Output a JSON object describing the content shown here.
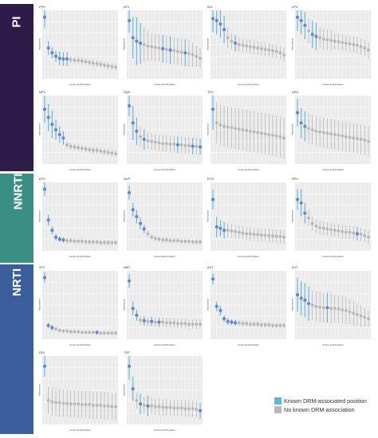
{
  "colors": {
    "known": "#5fb6d6",
    "known_point": "#6a86c9",
    "none": "#b8b8b8",
    "panel_bg": "#ebebeb",
    "grid": "#ffffff",
    "band_pi": "#2d1b4a",
    "band_nnrti": "#3a8f84",
    "band_nrti": "#3a5f9c"
  },
  "bands": [
    {
      "key": "pi",
      "label": "PI"
    },
    {
      "key": "nnrti",
      "label": "NNRTI"
    },
    {
      "key": "nrti",
      "label": "NRTI"
    }
  ],
  "legend": {
    "known_label": "Known DRM-associated position",
    "none_label": "No known DRM-association"
  },
  "chart_data": [
    {
      "type": "scatter",
      "title": "FPV",
      "xlabel": "Amino Acid Position",
      "ylabel": "Importance",
      "values": [
        0.9,
        0.45,
        0.38,
        0.33,
        0.3,
        0.29,
        0.29,
        0.28,
        0.27,
        0.27,
        0.26,
        0.25,
        0.24,
        0.23,
        0.22,
        0.21,
        0.2,
        0.19,
        0.18,
        0.17
      ],
      "known": [
        1,
        1,
        1,
        1,
        1,
        1,
        1,
        0,
        0,
        0,
        0,
        0,
        0,
        0,
        0,
        0,
        0,
        0,
        0,
        0
      ],
      "err": [
        0.15,
        0.1,
        0.08,
        0.08,
        0.1,
        0.1,
        0.1,
        0.05,
        0.05,
        0.05,
        0.05,
        0.05,
        0.05,
        0.05,
        0.05,
        0.05,
        0.05,
        0.05,
        0.05,
        0.05
      ]
    },
    {
      "type": "scatter",
      "title": "ATV",
      "xlabel": "Amino Acid Position",
      "ylabel": "Importance",
      "values": [
        0.85,
        0.6,
        0.55,
        0.52,
        0.5,
        0.48,
        0.47,
        0.46,
        0.45,
        0.44,
        0.43,
        0.42,
        0.41,
        0.4,
        0.39,
        0.38,
        0.37,
        0.35,
        0.33,
        0.3
      ],
      "known": [
        1,
        1,
        1,
        1,
        0,
        0,
        0,
        0,
        0,
        1,
        0,
        1,
        0,
        0,
        0,
        1,
        0,
        0,
        0,
        0
      ],
      "err": [
        0.18,
        0.3,
        0.35,
        0.3,
        0.25,
        0.22,
        0.2,
        0.2,
        0.2,
        0.2,
        0.2,
        0.2,
        0.2,
        0.2,
        0.2,
        0.2,
        0.2,
        0.18,
        0.15,
        0.15
      ]
    },
    {
      "type": "scatter",
      "title": "IDV",
      "xlabel": "Amino Acid Position",
      "ylabel": "Importance",
      "values": [
        0.88,
        0.85,
        0.8,
        0.72,
        0.6,
        0.55,
        0.52,
        0.5,
        0.49,
        0.48,
        0.47,
        0.46,
        0.45,
        0.44,
        0.43,
        0.42,
        0.41,
        0.4,
        0.38,
        0.35
      ],
      "known": [
        1,
        1,
        1,
        1,
        0,
        0,
        1,
        0,
        0,
        0,
        0,
        0,
        0,
        0,
        0,
        0,
        0,
        0,
        0,
        0
      ],
      "err": [
        0.2,
        0.2,
        0.2,
        0.2,
        0.15,
        0.12,
        0.12,
        0.1,
        0.1,
        0.1,
        0.1,
        0.1,
        0.1,
        0.1,
        0.1,
        0.1,
        0.1,
        0.1,
        0.1,
        0.1
      ]
    },
    {
      "type": "scatter",
      "title": "LPV",
      "xlabel": "Amino Acid Position",
      "ylabel": "Importance",
      "values": [
        0.9,
        0.85,
        0.78,
        0.7,
        0.65,
        0.62,
        0.6,
        0.58,
        0.57,
        0.56,
        0.55,
        0.54,
        0.53,
        0.52,
        0.51,
        0.5,
        0.49,
        0.47,
        0.45,
        0.42
      ],
      "known": [
        1,
        1,
        1,
        0,
        1,
        1,
        0,
        0,
        0,
        0,
        0,
        0,
        0,
        0,
        0,
        0,
        0,
        0,
        0,
        0
      ],
      "err": [
        0.2,
        0.2,
        0.2,
        0.18,
        0.2,
        0.2,
        0.15,
        0.15,
        0.15,
        0.15,
        0.12,
        0.12,
        0.12,
        0.12,
        0.12,
        0.12,
        0.12,
        0.12,
        0.12,
        0.12
      ]
    },
    {
      "type": "scatter",
      "title": "NFV",
      "xlabel": "Amino Acid Position",
      "ylabel": "Importance",
      "values": [
        0.8,
        0.68,
        0.58,
        0.5,
        0.43,
        0.38,
        0.28,
        0.26,
        0.25,
        0.24,
        0.23,
        0.22,
        0.21,
        0.2,
        0.2,
        0.19,
        0.18,
        0.17,
        0.16,
        0.15
      ],
      "known": [
        1,
        1,
        1,
        1,
        1,
        1,
        0,
        0,
        0,
        0,
        0,
        0,
        0,
        0,
        0,
        0,
        0,
        0,
        0,
        0
      ],
      "err": [
        0.2,
        0.2,
        0.2,
        0.15,
        0.12,
        0.1,
        0.05,
        0.05,
        0.05,
        0.05,
        0.05,
        0.05,
        0.05,
        0.05,
        0.05,
        0.05,
        0.05,
        0.05,
        0.05,
        0.05
      ]
    },
    {
      "type": "scatter",
      "title": "SQV",
      "xlabel": "Amino Acid Position",
      "ylabel": "Importance",
      "values": [
        0.85,
        0.6,
        0.48,
        0.4,
        0.36,
        0.34,
        0.33,
        0.32,
        0.31,
        0.3,
        0.3,
        0.29,
        0.29,
        0.28,
        0.28,
        0.27,
        0.27,
        0.26,
        0.26,
        0.25
      ],
      "known": [
        1,
        1,
        1,
        0,
        1,
        0,
        0,
        0,
        0,
        0,
        0,
        0,
        0,
        1,
        0,
        0,
        0,
        1,
        0,
        1
      ],
      "err": [
        0.15,
        0.25,
        0.2,
        0.15,
        0.15,
        0.12,
        0.12,
        0.12,
        0.12,
        0.12,
        0.12,
        0.12,
        0.12,
        0.12,
        0.12,
        0.12,
        0.12,
        0.12,
        0.12,
        0.12
      ]
    },
    {
      "type": "scatter",
      "title": "TPV",
      "xlabel": "Amino Acid Position",
      "ylabel": "Importance",
      "values": [
        0.8,
        0.6,
        0.57,
        0.55,
        0.54,
        0.53,
        0.52,
        0.51,
        0.5,
        0.49,
        0.48,
        0.47,
        0.46,
        0.45,
        0.44,
        0.43,
        0.42,
        0.41,
        0.4,
        0.38
      ],
      "known": [
        1,
        0,
        0,
        0,
        0,
        0,
        0,
        0,
        0,
        0,
        0,
        0,
        0,
        0,
        0,
        0,
        0,
        0,
        0,
        0
      ],
      "err": [
        0.3,
        0.3,
        0.3,
        0.3,
        0.3,
        0.3,
        0.3,
        0.3,
        0.3,
        0.3,
        0.3,
        0.3,
        0.3,
        0.3,
        0.3,
        0.3,
        0.3,
        0.3,
        0.3,
        0.3
      ]
    },
    {
      "type": "scatter",
      "title": "DRV",
      "xlabel": "Amino Acid Position",
      "ylabel": "Importance",
      "values": [
        0.75,
        0.6,
        0.55,
        0.52,
        0.5,
        0.48,
        0.47,
        0.46,
        0.45,
        0.44,
        0.43,
        0.42,
        0.41,
        0.4,
        0.39,
        0.38,
        0.37,
        0.36,
        0.35,
        0.33
      ],
      "known": [
        1,
        1,
        1,
        0,
        0,
        0,
        0,
        0,
        0,
        0,
        0,
        0,
        0,
        0,
        0,
        0,
        0,
        0,
        0,
        0
      ],
      "err": [
        0.2,
        0.22,
        0.22,
        0.22,
        0.22,
        0.22,
        0.22,
        0.22,
        0.22,
        0.22,
        0.22,
        0.22,
        0.22,
        0.22,
        0.22,
        0.22,
        0.22,
        0.22,
        0.22,
        0.22
      ]
    },
    {
      "type": "scatter",
      "title": "EFV",
      "xlabel": "Amino Acid Position",
      "ylabel": "Importance",
      "values": [
        0.9,
        0.45,
        0.3,
        0.2,
        0.17,
        0.16,
        0.15,
        0.15,
        0.14,
        0.14,
        0.14,
        0.13,
        0.13,
        0.13,
        0.13,
        0.12,
        0.12,
        0.12,
        0.12,
        0.12
      ],
      "known": [
        1,
        1,
        1,
        1,
        1,
        1,
        0,
        0,
        0,
        0,
        0,
        0,
        0,
        0,
        0,
        0,
        0,
        0,
        0,
        0
      ],
      "err": [
        0.1,
        0.08,
        0.06,
        0.05,
        0.04,
        0.04,
        0.04,
        0.04,
        0.04,
        0.04,
        0.04,
        0.04,
        0.04,
        0.04,
        0.04,
        0.04,
        0.04,
        0.04,
        0.04,
        0.04
      ]
    },
    {
      "type": "scatter",
      "title": "NVP",
      "xlabel": "Amino Acid Position",
      "ylabel": "Importance",
      "values": [
        0.85,
        0.6,
        0.5,
        0.4,
        0.32,
        0.25,
        0.2,
        0.18,
        0.17,
        0.16,
        0.16,
        0.15,
        0.15,
        0.15,
        0.14,
        0.14,
        0.14,
        0.13,
        0.13,
        0.13
      ],
      "known": [
        1,
        1,
        1,
        1,
        1,
        0,
        0,
        0,
        0,
        0,
        0,
        0,
        0,
        0,
        0,
        0,
        0,
        0,
        0,
        0
      ],
      "err": [
        0.1,
        0.1,
        0.1,
        0.08,
        0.06,
        0.05,
        0.05,
        0.04,
        0.04,
        0.04,
        0.04,
        0.04,
        0.04,
        0.04,
        0.04,
        0.04,
        0.04,
        0.04,
        0.04,
        0.04
      ]
    },
    {
      "type": "scatter",
      "title": "ETR",
      "xlabel": "Amino Acid Position",
      "ylabel": "Importance",
      "values": [
        0.75,
        0.35,
        0.33,
        0.3,
        0.3,
        0.29,
        0.28,
        0.27,
        0.26,
        0.25,
        0.25,
        0.24,
        0.24,
        0.23,
        0.23,
        0.22,
        0.22,
        0.21,
        0.21,
        0.2
      ],
      "known": [
        1,
        1,
        1,
        1,
        0,
        0,
        0,
        0,
        0,
        0,
        0,
        0,
        0,
        0,
        0,
        0,
        0,
        0,
        0,
        0
      ],
      "err": [
        0.15,
        0.15,
        0.12,
        0.12,
        0.1,
        0.1,
        0.1,
        0.1,
        0.1,
        0.1,
        0.1,
        0.1,
        0.1,
        0.1,
        0.1,
        0.1,
        0.1,
        0.1,
        0.1,
        0.1
      ]
    },
    {
      "type": "scatter",
      "title": "RPV",
      "xlabel": "Amino Acid Position",
      "ylabel": "Importance",
      "values": [
        0.75,
        0.7,
        0.55,
        0.48,
        0.4,
        0.36,
        0.34,
        0.33,
        0.32,
        0.31,
        0.3,
        0.29,
        0.28,
        0.27,
        0.27,
        0.26,
        0.25,
        0.24,
        0.22,
        0.2
      ],
      "known": [
        1,
        1,
        1,
        0,
        0,
        0,
        0,
        0,
        0,
        0,
        0,
        0,
        0,
        0,
        0,
        0,
        1,
        0,
        0,
        0
      ],
      "err": [
        0.15,
        0.2,
        0.15,
        0.12,
        0.1,
        0.1,
        0.1,
        0.1,
        0.1,
        0.1,
        0.1,
        0.1,
        0.1,
        0.1,
        0.1,
        0.1,
        0.1,
        0.1,
        0.1,
        0.1
      ]
    },
    {
      "type": "scatter",
      "title": "3TC",
      "xlabel": "Amino Acid Position",
      "ylabel": "Importance",
      "values": [
        0.9,
        0.2,
        0.17,
        0.15,
        0.13,
        0.12,
        0.12,
        0.11,
        0.11,
        0.11,
        0.1,
        0.1,
        0.1,
        0.1,
        0.1,
        0.09,
        0.09,
        0.09,
        0.09,
        0.09
      ],
      "known": [
        1,
        1,
        1,
        0,
        0,
        0,
        0,
        0,
        0,
        0,
        0,
        0,
        0,
        0,
        1,
        0,
        0,
        0,
        0,
        0
      ],
      "err": [
        0.08,
        0.04,
        0.04,
        0.03,
        0.03,
        0.03,
        0.03,
        0.03,
        0.03,
        0.03,
        0.03,
        0.03,
        0.03,
        0.03,
        0.03,
        0.03,
        0.03,
        0.03,
        0.03,
        0.03
      ]
    },
    {
      "type": "scatter",
      "title": "ABC",
      "xlabel": "Amino Acid Position",
      "ylabel": "Importance",
      "values": [
        0.85,
        0.45,
        0.35,
        0.28,
        0.27,
        0.26,
        0.26,
        0.25,
        0.25,
        0.25,
        0.24,
        0.24,
        0.24,
        0.23,
        0.23,
        0.23,
        0.22,
        0.22,
        0.22,
        0.22
      ],
      "known": [
        1,
        1,
        1,
        0,
        1,
        0,
        1,
        0,
        1,
        0,
        0,
        0,
        0,
        0,
        0,
        0,
        0,
        0,
        0,
        0
      ],
      "err": [
        0.1,
        0.1,
        0.08,
        0.07,
        0.07,
        0.07,
        0.07,
        0.07,
        0.07,
        0.07,
        0.07,
        0.07,
        0.07,
        0.07,
        0.07,
        0.07,
        0.07,
        0.07,
        0.07,
        0.07
      ]
    },
    {
      "type": "scatter",
      "title": "AZT",
      "xlabel": "Amino Acid Position",
      "ylabel": "Importance",
      "values": [
        0.88,
        0.48,
        0.42,
        0.3,
        0.26,
        0.25,
        0.24,
        0.24,
        0.23,
        0.23,
        0.22,
        0.22,
        0.22,
        0.21,
        0.21,
        0.21,
        0.2,
        0.2,
        0.2,
        0.2
      ],
      "known": [
        1,
        1,
        1,
        1,
        1,
        1,
        1,
        0,
        0,
        0,
        0,
        0,
        0,
        0,
        0,
        0,
        0,
        0,
        0,
        0
      ],
      "err": [
        0.08,
        0.07,
        0.07,
        0.05,
        0.05,
        0.04,
        0.04,
        0.04,
        0.04,
        0.04,
        0.04,
        0.04,
        0.04,
        0.04,
        0.04,
        0.04,
        0.04,
        0.04,
        0.04,
        0.04
      ]
    },
    {
      "type": "scatter",
      "title": "D4T",
      "xlabel": "Amino Acid Position",
      "ylabel": "Importance",
      "values": [
        0.65,
        0.6,
        0.57,
        0.52,
        0.5,
        0.48,
        0.47,
        0.46,
        0.46,
        0.45,
        0.45,
        0.44,
        0.43,
        0.42,
        0.4,
        0.38,
        0.36,
        0.34,
        0.32,
        0.3
      ],
      "known": [
        1,
        1,
        1,
        1,
        0,
        0,
        0,
        0,
        1,
        0,
        0,
        0,
        0,
        0,
        0,
        0,
        0,
        0,
        0,
        0
      ],
      "err": [
        0.25,
        0.25,
        0.25,
        0.25,
        0.22,
        0.22,
        0.22,
        0.22,
        0.22,
        0.22,
        0.2,
        0.2,
        0.2,
        0.2,
        0.18,
        0.18,
        0.16,
        0.16,
        0.14,
        0.12
      ]
    },
    {
      "type": "scatter",
      "title": "DDI",
      "xlabel": "Amino Acid Position",
      "ylabel": "Importance",
      "values": [
        0.85,
        0.35,
        0.33,
        0.32,
        0.32,
        0.31,
        0.31,
        0.3,
        0.3,
        0.3,
        0.29,
        0.29,
        0.29,
        0.28,
        0.28,
        0.28,
        0.27,
        0.27,
        0.26,
        0.26
      ],
      "known": [
        1,
        0,
        0,
        0,
        0,
        0,
        0,
        0,
        0,
        0,
        0,
        0,
        0,
        0,
        0,
        0,
        0,
        0,
        0,
        0
      ],
      "err": [
        0.15,
        0.2,
        0.2,
        0.2,
        0.2,
        0.2,
        0.2,
        0.2,
        0.2,
        0.2,
        0.2,
        0.2,
        0.2,
        0.2,
        0.2,
        0.2,
        0.2,
        0.2,
        0.2,
        0.2
      ]
    },
    {
      "type": "scatter",
      "title": "TDF",
      "xlabel": "Amino Acid Position",
      "ylabel": "Importance",
      "values": [
        0.85,
        0.52,
        0.35,
        0.3,
        0.28,
        0.27,
        0.27,
        0.26,
        0.26,
        0.25,
        0.25,
        0.25,
        0.24,
        0.24,
        0.24,
        0.23,
        0.23,
        0.23,
        0.22,
        0.2
      ],
      "known": [
        1,
        1,
        0,
        1,
        0,
        1,
        0,
        0,
        0,
        0,
        0,
        0,
        0,
        0,
        0,
        0,
        0,
        0,
        0,
        1
      ],
      "err": [
        0.2,
        0.18,
        0.12,
        0.15,
        0.12,
        0.15,
        0.12,
        0.12,
        0.12,
        0.12,
        0.12,
        0.12,
        0.12,
        0.12,
        0.12,
        0.12,
        0.12,
        0.12,
        0.12,
        0.12
      ]
    }
  ]
}
